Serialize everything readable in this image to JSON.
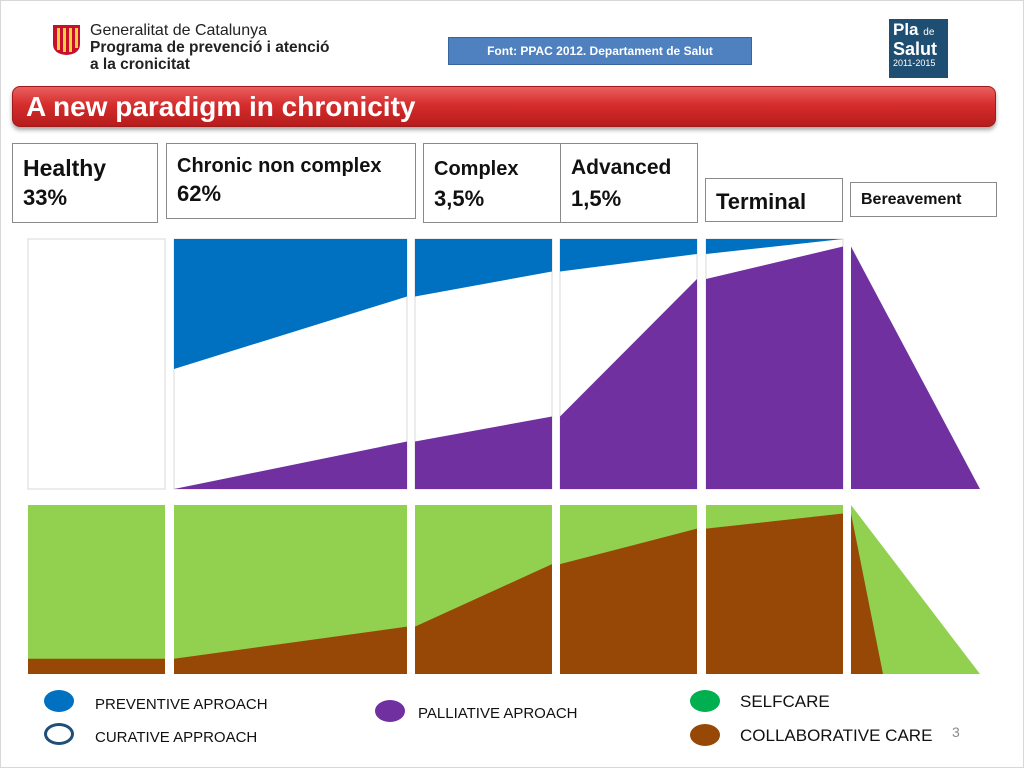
{
  "header": {
    "org_line1": "Generalitat de Catalunya",
    "org_line2": "Programa de prevenció i atenció",
    "org_line3": "a la cronicitat",
    "source_note": "Font: PPAC 2012. Departament de Salut",
    "badge_word1": "Pla",
    "badge_small": "de",
    "badge_word2": "Salut",
    "badge_years": "2011-2015"
  },
  "title": "A new paradigm in chronicity",
  "stages": [
    {
      "name": "Healthy",
      "percent": "33%"
    },
    {
      "name": "Chronic non complex",
      "percent": "62%"
    },
    {
      "name": "Complex",
      "percent": "3,5%"
    },
    {
      "name": "Advanced",
      "percent": "1,5%"
    },
    {
      "name": "Terminal",
      "percent": ""
    },
    {
      "name": "Bereavement",
      "percent": ""
    }
  ],
  "legend": {
    "preventive": "PREVENTIVE APROACH",
    "curative": "CURATIVE APPROACH",
    "palliative": "PALLIATIVE APROACH",
    "selfcare": "SELFCARE",
    "collaborative": "COLLABORATIVE CARE"
  },
  "slide_number": "3",
  "colors": {
    "preventive": "#0070c0",
    "curative": "#ffffff",
    "palliative": "#7030a0",
    "selfcare": "#92d050",
    "collaborative": "#974806",
    "selfcare_legend": "#00b050"
  },
  "chart_data": [
    {
      "type": "area",
      "subject": "approach by stage",
      "segments": 6,
      "y_range": [
        0,
        1
      ],
      "series": [
        {
          "key": "preventive",
          "name": "PREVENTIVE APROACH",
          "boundary": [
            [
              1.0,
              1.0
            ],
            [
              0.48,
              0.77
            ],
            [
              0.77,
              0.87
            ],
            [
              0.87,
              0.94
            ],
            [
              0.94,
              1.0
            ],
            [
              1.0,
              1.0
            ]
          ]
        },
        {
          "key": "palliative",
          "name": "PALLIATIVE APROACH",
          "boundary": [
            [
              0.0,
              0.0
            ],
            [
              0.0,
              0.19
            ],
            [
              0.19,
              0.29
            ],
            [
              0.29,
              0.84
            ],
            [
              0.84,
              0.97
            ],
            [
              0.97,
              0.0
            ]
          ]
        }
      ]
    },
    {
      "type": "area",
      "subject": "care model by stage",
      "segments": 6,
      "y_range": [
        0,
        1
      ],
      "series": [
        {
          "key": "collaborative",
          "name": "COLLABORATIVE CARE",
          "boundary": [
            [
              0.09,
              0.09
            ],
            [
              0.09,
              0.28
            ],
            [
              0.28,
              0.65
            ],
            [
              0.65,
              0.86
            ],
            [
              0.86,
              0.95
            ],
            [
              0.95,
              0.0
            ]
          ]
        },
        {
          "key": "selfcare",
          "name": "SELFCARE",
          "boundary": [
            [
              1.0,
              1.0
            ],
            [
              1.0,
              1.0
            ],
            [
              1.0,
              1.0
            ],
            [
              1.0,
              1.0
            ],
            [
              1.0,
              1.0
            ],
            [
              1.0,
              0.0
            ]
          ]
        }
      ]
    }
  ]
}
